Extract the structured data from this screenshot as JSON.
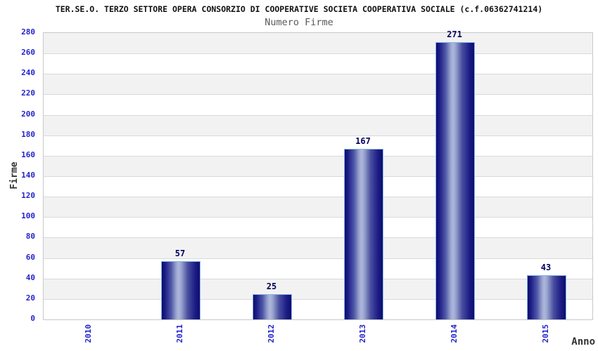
{
  "chart_data": {
    "type": "bar",
    "title": "TER.SE.O. TERZO SETTORE OPERA CONSORZIO DI COOPERATIVE SOCIETA COOPERATIVA SOCIALE (c.f.06362741214)",
    "subtitle": "Numero Firme",
    "xlabel": "Anno",
    "ylabel": "Firme",
    "categories": [
      "2010",
      "2011",
      "2012",
      "2013",
      "2014",
      "2015"
    ],
    "values": [
      0,
      57,
      25,
      167,
      271,
      43
    ],
    "ylim": [
      0,
      280
    ],
    "ytick_step": 20,
    "grid": true,
    "legend": "none",
    "bar_style": "cylinder-gradient",
    "colors": {
      "tick_label": "#2323cc",
      "bar_dark": "#0e0e6b",
      "bar_shade": "#1b1b85",
      "bar_mid": "#aeb7dc",
      "bar_mid2": "#9ba5cf",
      "bar_border": "#84b4ec",
      "value_label": "#000060",
      "band_gray": "#f2f2f2",
      "band_white": "#ffffff",
      "gridline": "#d9d9d9",
      "plot_border": "#c8c8c8",
      "title_color": "#111111",
      "subtitle_color": "#5a5a5a",
      "axis_title_color": "#333333"
    }
  }
}
